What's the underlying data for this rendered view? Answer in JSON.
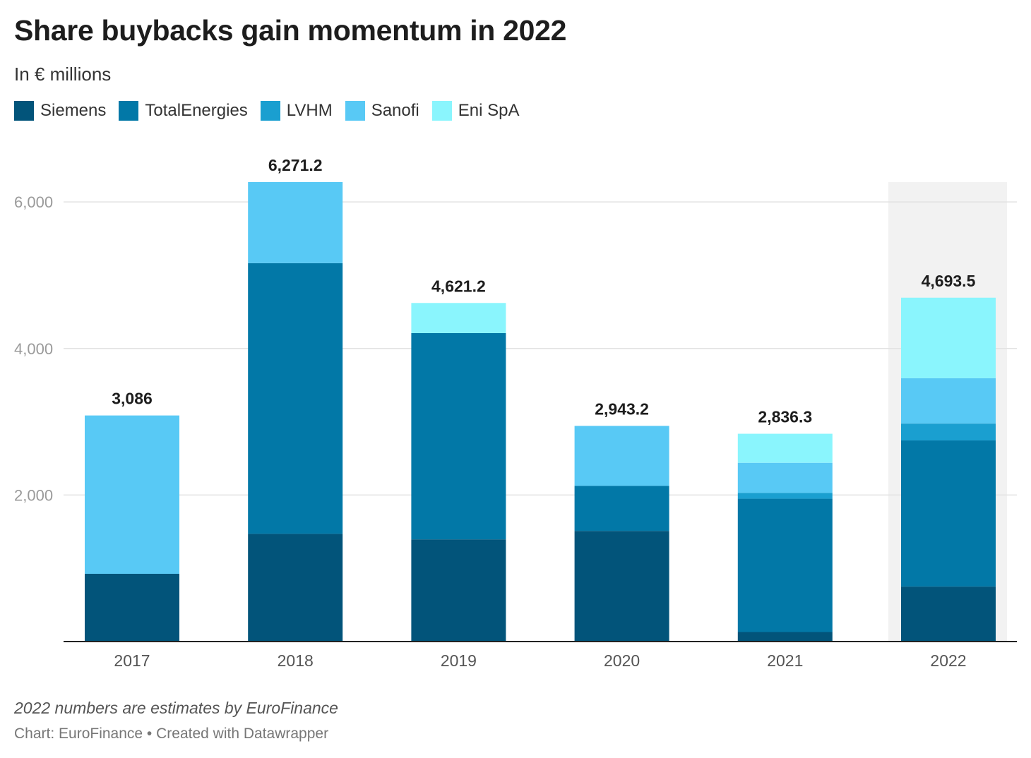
{
  "title": "Share buybacks gain momentum in 2022",
  "subtitle": "In € millions",
  "note": "2022 numbers are estimates by EuroFinance",
  "source": "Chart: EuroFinance • Created with Datawrapper",
  "chart_data": {
    "type": "bar",
    "stacked": true,
    "categories": [
      "2017",
      "2018",
      "2019",
      "2020",
      "2021",
      "2022"
    ],
    "series": [
      {
        "name": "Siemens",
        "color": "#02547a",
        "values": [
          925,
          1470,
          1395,
          1510,
          130,
          750
        ]
      },
      {
        "name": "TotalEnergies",
        "color": "#0278a7",
        "values": [
          0,
          3695,
          2815,
          615,
          1820,
          1995
        ]
      },
      {
        "name": "LVHM",
        "color": "#1a9fd0",
        "values": [
          0,
          0,
          0,
          0,
          80,
          230
        ]
      },
      {
        "name": "Sanofi",
        "color": "#58c9f5",
        "values": [
          2161,
          1106.2,
          0,
          818.2,
          410,
          620
        ]
      },
      {
        "name": "Eni SpA",
        "color": "#8af5fd",
        "values": [
          0,
          0,
          411.2,
          0,
          396.3,
          1098.5
        ]
      }
    ],
    "totals": [
      "3,086",
      "6,271.2",
      "4,621.2",
      "2,943.2",
      "2,836.3",
      "4,693.5"
    ],
    "highlight_category": "2022",
    "highlight_color": "#f2f2f2",
    "ylim": [
      0,
      6271.2
    ],
    "yticks": [
      2000,
      4000,
      6000
    ],
    "ytick_labels": [
      "2,000",
      "4,000",
      "6,000"
    ],
    "grid": true,
    "legend_position": "top-left",
    "xlabel": "",
    "ylabel": ""
  }
}
